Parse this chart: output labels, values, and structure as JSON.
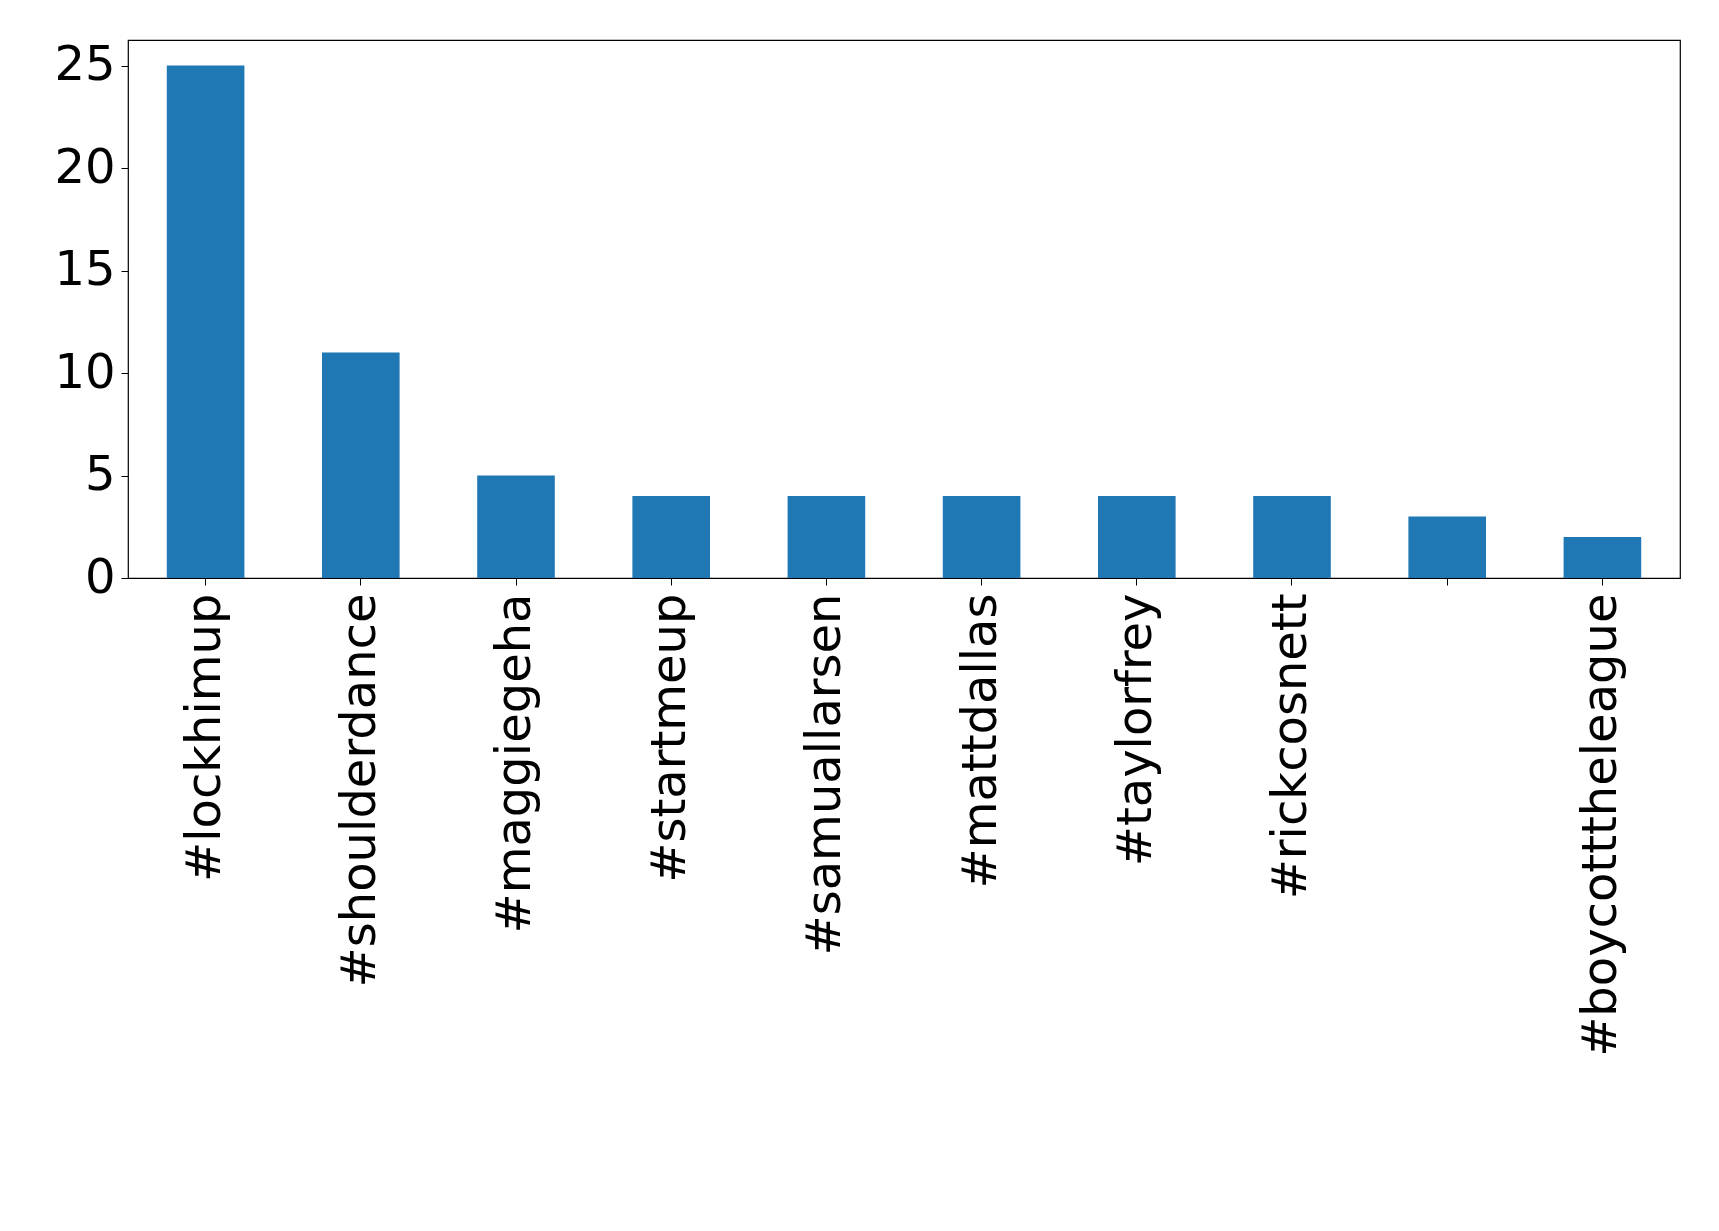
{
  "chart_data": {
    "type": "bar",
    "categories": [
      "#lockhimup",
      "#shoulderdance",
      "#maggiegeha",
      "#startmeup",
      "#samuallarsen",
      "#mattdallas",
      "#taylorfrey",
      "#rickcosnett",
      null,
      "#boycotttheleague"
    ],
    "values": [
      25,
      11,
      5,
      4,
      4,
      4,
      4,
      4,
      3,
      2
    ],
    "color": "#1f77b4",
    "ylim": [
      0,
      26.25
    ],
    "yticks": [
      0,
      5,
      10,
      15,
      20,
      25
    ],
    "grid": false
  }
}
